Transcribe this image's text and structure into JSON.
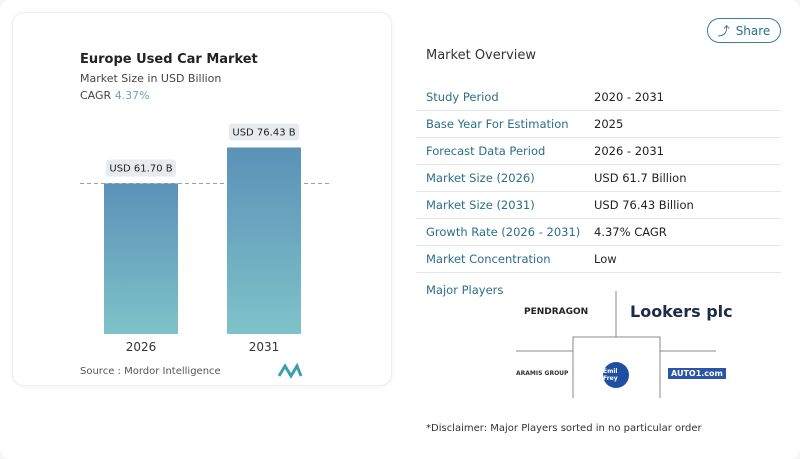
{
  "share_label": "Share",
  "chart_data": {
    "type": "bar",
    "title": "Europe Used Car Market",
    "subtitle": "Market Size in USD Billion",
    "cagr_label": "CAGR",
    "cagr_value": "4.37%",
    "categories": [
      "2026",
      "2031"
    ],
    "values": [
      61.7,
      76.43
    ],
    "data_labels": [
      "USD 61.70 B",
      "USD 76.43 B"
    ],
    "bar_color_top": "#5b91b8",
    "bar_color_bottom": "#7ec3c9",
    "reference_line": "dashed at 2026 value",
    "grid": false
  },
  "source": "Source :  Mordor Intelligence",
  "overview": {
    "title": "Market Overview",
    "rows": [
      {
        "k": "Study Period",
        "v": "2020 - 2031"
      },
      {
        "k": "Base Year For Estimation",
        "v": "2025"
      },
      {
        "k": "Forecast Data Period",
        "v": "2026 - 2031"
      },
      {
        "k": "Market Size (2026)",
        "v": "USD 61.7 Billion"
      },
      {
        "k": "Market Size (2031)",
        "v": "USD 76.43 Billion"
      },
      {
        "k": "Growth Rate (2026 - 2031)",
        "v": "4.37% CAGR"
      },
      {
        "k": "Market Concentration",
        "v": "Low"
      }
    ]
  },
  "players": {
    "title": "Major Players",
    "logos": [
      "PENDRAGON",
      "Lookers plc",
      "ARAMIS GROUP",
      "Emil Frey",
      "AUTO1.com"
    ]
  },
  "disclaimer": "*Disclaimer: Major Players sorted in no particular order"
}
